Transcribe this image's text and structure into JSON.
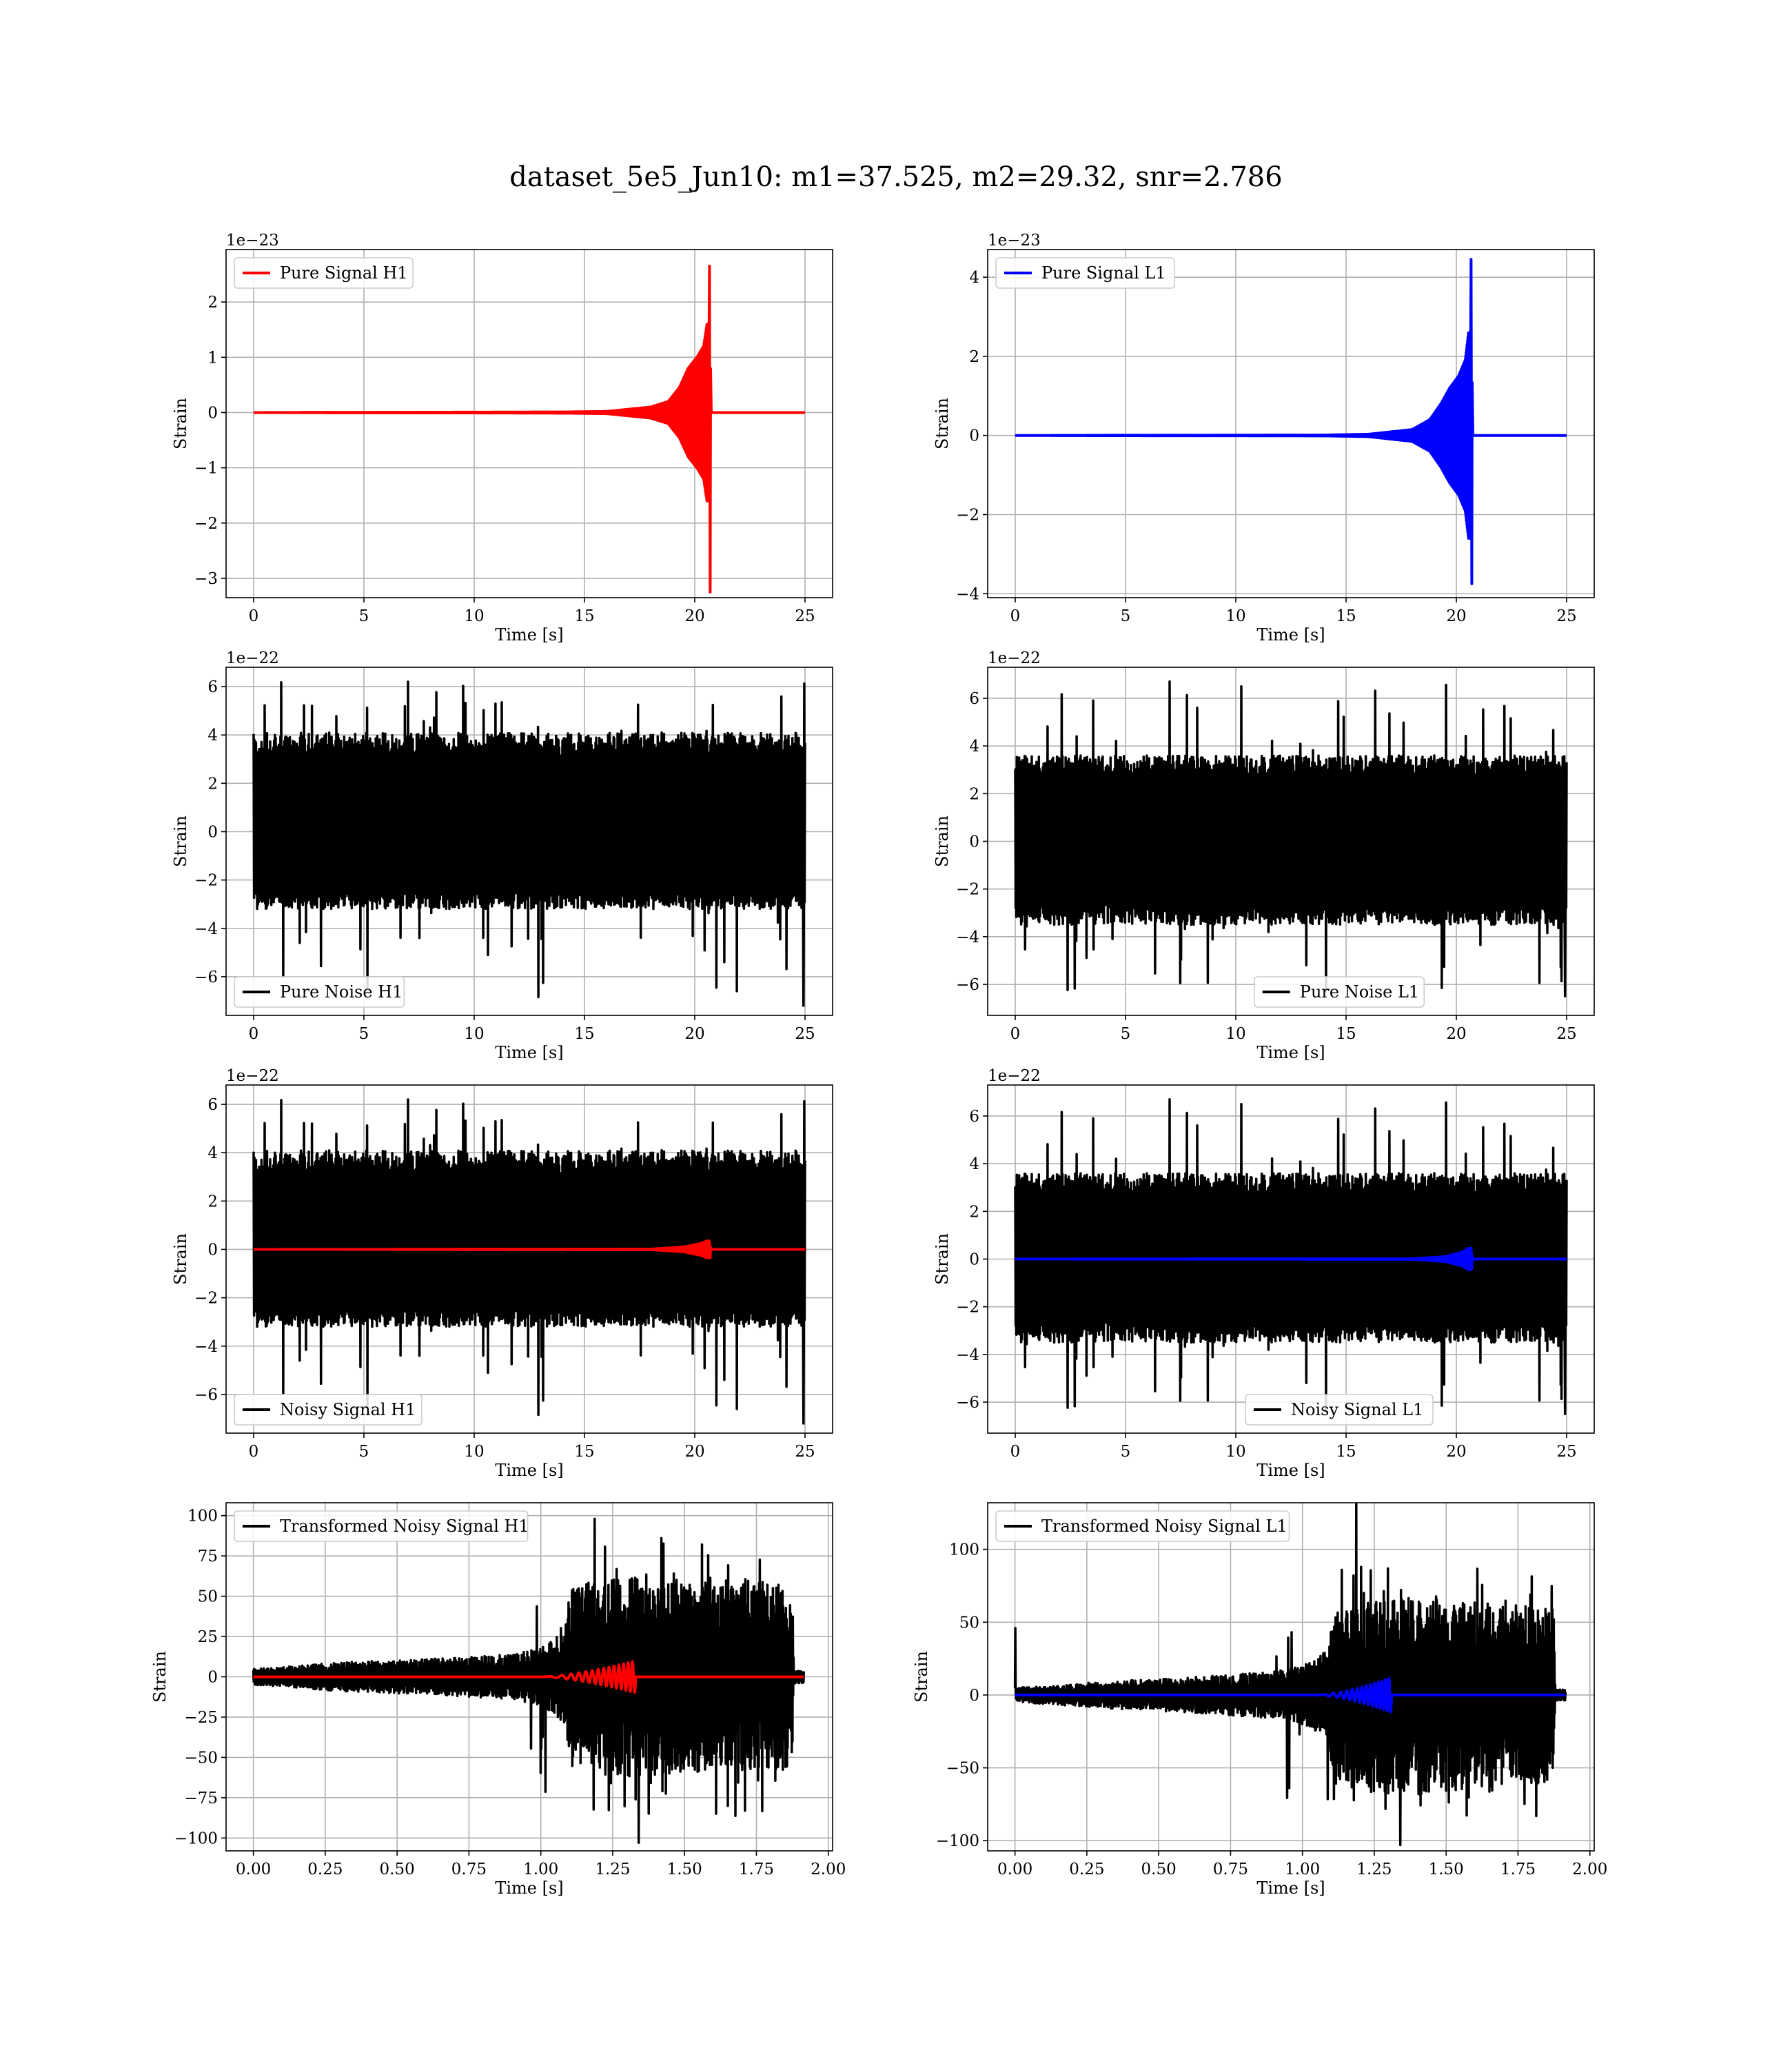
{
  "figure": {
    "title": "dataset_5e5_Jun10: m1=37.525, m2=29.32, snr=2.786"
  },
  "colors": {
    "h1_signal": "#ff0000",
    "l1_signal": "#0000ff",
    "noise": "#000000",
    "grid": "#b0b0b0"
  },
  "chart_data": [
    {
      "id": "pure-signal-h1",
      "type": "line",
      "xlabel": "Time [s]",
      "ylabel": "Strain",
      "offset_text": "1e−23",
      "xlim": [
        -1.25,
        26.25
      ],
      "ylim": [
        -3.35,
        2.95
      ],
      "xticks": [
        0,
        5,
        10,
        15,
        20,
        25
      ],
      "xtick_labels": [
        "0",
        "5",
        "10",
        "15",
        "20",
        "25"
      ],
      "yticks": [
        -3,
        -2,
        -1,
        0,
        1,
        2
      ],
      "ytick_labels": [
        "−3",
        "−2",
        "−1",
        "0",
        "1",
        "2"
      ],
      "legend": {
        "placement": "upper left",
        "entries": [
          {
            "label": "Pure Signal H1",
            "color": "#ff0000"
          }
        ]
      },
      "grid": true,
      "series": [
        {
          "name": "Pure Signal H1",
          "color": "#ff0000",
          "kind": "chirp",
          "x_start": 0,
          "x_end": 25,
          "merger_x": 20.65,
          "ringdown_end_x": 20.75,
          "envelope": [
            [
              0,
              0
            ],
            [
              14,
              0.01
            ],
            [
              16,
              0.02
            ],
            [
              18,
              0.1
            ],
            [
              18.8,
              0.2
            ],
            [
              19.3,
              0.45
            ],
            [
              19.7,
              0.8
            ],
            [
              20.1,
              1.0
            ],
            [
              20.4,
              1.2
            ],
            [
              20.55,
              1.6
            ]
          ],
          "peak_pos": 2.65,
          "peak_neg": -3.25
        }
      ]
    },
    {
      "id": "pure-signal-l1",
      "type": "line",
      "xlabel": "Time [s]",
      "ylabel": "Strain",
      "offset_text": "1e−23",
      "xlim": [
        -1.25,
        26.25
      ],
      "ylim": [
        -4.1,
        4.7
      ],
      "xticks": [
        0,
        5,
        10,
        15,
        20,
        25
      ],
      "xtick_labels": [
        "0",
        "5",
        "10",
        "15",
        "20",
        "25"
      ],
      "yticks": [
        -4,
        -2,
        0,
        2,
        4
      ],
      "ytick_labels": [
        "−4",
        "−2",
        "0",
        "2",
        "4"
      ],
      "legend": {
        "placement": "upper left",
        "entries": [
          {
            "label": "Pure Signal L1",
            "color": "#0000ff"
          }
        ]
      },
      "grid": true,
      "series": [
        {
          "name": "Pure Signal L1",
          "color": "#0000ff",
          "kind": "chirp",
          "x_start": 0,
          "x_end": 25,
          "merger_x": 20.65,
          "ringdown_end_x": 20.75,
          "envelope": [
            [
              0,
              0
            ],
            [
              14,
              0.01
            ],
            [
              16,
              0.03
            ],
            [
              18,
              0.15
            ],
            [
              18.8,
              0.4
            ],
            [
              19.3,
              0.8
            ],
            [
              19.7,
              1.2
            ],
            [
              20.1,
              1.5
            ],
            [
              20.4,
              1.9
            ],
            [
              20.55,
              2.6
            ]
          ],
          "peak_pos": 4.45,
          "peak_neg": -3.75
        }
      ]
    },
    {
      "id": "pure-noise-h1",
      "type": "line",
      "xlabel": "Time [s]",
      "ylabel": "Strain",
      "offset_text": "1e−22",
      "xlim": [
        -1.25,
        26.25
      ],
      "ylim": [
        -7.6,
        6.8
      ],
      "xticks": [
        0,
        5,
        10,
        15,
        20,
        25
      ],
      "xtick_labels": [
        "0",
        "5",
        "10",
        "15",
        "20",
        "25"
      ],
      "yticks": [
        -6,
        -4,
        -2,
        0,
        2,
        4,
        6
      ],
      "ytick_labels": [
        "−6",
        "−4",
        "−2",
        "0",
        "2",
        "4",
        "6"
      ],
      "legend": {
        "placement": "lower left",
        "entries": [
          {
            "label": "Pure Noise H1",
            "color": "#000000"
          }
        ]
      },
      "grid": true,
      "series": [
        {
          "name": "Pure Noise H1",
          "color": "#000000",
          "kind": "noise",
          "x_start": 0,
          "x_end": 25,
          "core": [
            -3.2,
            4.1
          ],
          "max": 6.2,
          "min": -7.2,
          "seed": 11
        }
      ]
    },
    {
      "id": "pure-noise-l1",
      "type": "line",
      "xlabel": "Time [s]",
      "ylabel": "Strain",
      "offset_text": "1e−22",
      "xlim": [
        -1.25,
        26.25
      ],
      "ylim": [
        -7.3,
        7.3
      ],
      "xticks": [
        0,
        5,
        10,
        15,
        20,
        25
      ],
      "xtick_labels": [
        "0",
        "5",
        "10",
        "15",
        "20",
        "25"
      ],
      "yticks": [
        -6,
        -4,
        -2,
        0,
        2,
        4,
        6
      ],
      "ytick_labels": [
        "−6",
        "−4",
        "−2",
        "0",
        "2",
        "4",
        "6"
      ],
      "legend": {
        "placement": "lower center",
        "entries": [
          {
            "label": "Pure Noise L1",
            "color": "#000000"
          }
        ]
      },
      "grid": true,
      "series": [
        {
          "name": "Pure Noise L1",
          "color": "#000000",
          "kind": "noise",
          "x_start": 0,
          "x_end": 25,
          "core": [
            -3.5,
            3.6
          ],
          "max": 6.7,
          "min": -6.5,
          "seed": 23
        }
      ]
    },
    {
      "id": "noisy-signal-h1",
      "type": "line",
      "xlabel": "Time [s]",
      "ylabel": "Strain",
      "offset_text": "1e−22",
      "xlim": [
        -1.25,
        26.25
      ],
      "ylim": [
        -7.6,
        6.8
      ],
      "xticks": [
        0,
        5,
        10,
        15,
        20,
        25
      ],
      "xtick_labels": [
        "0",
        "5",
        "10",
        "15",
        "20",
        "25"
      ],
      "yticks": [
        -6,
        -4,
        -2,
        0,
        2,
        4,
        6
      ],
      "ytick_labels": [
        "−6",
        "−4",
        "−2",
        "0",
        "2",
        "4",
        "6"
      ],
      "legend": {
        "placement": "lower left",
        "entries": [
          {
            "label": "Noisy Signal H1",
            "color": "#000000"
          }
        ]
      },
      "grid": true,
      "series": [
        {
          "name": "Noisy Signal H1",
          "color": "#000000",
          "kind": "noise",
          "x_start": 0,
          "x_end": 25,
          "core": [
            -3.2,
            4.1
          ],
          "max": 6.2,
          "min": -7.2,
          "seed": 11
        },
        {
          "name": "Pure Signal H1",
          "color": "#ff0000",
          "kind": "chirp",
          "x_start": 0,
          "x_end": 25,
          "merger_x": 20.65,
          "ringdown_end_x": 20.75,
          "envelope": [
            [
              0,
              0
            ],
            [
              18,
              0.01
            ],
            [
              19.5,
              0.1
            ],
            [
              20.3,
              0.25
            ],
            [
              20.55,
              0.35
            ]
          ],
          "peak_pos": 0.3,
          "peak_neg": -0.35
        }
      ]
    },
    {
      "id": "noisy-signal-l1",
      "type": "line",
      "xlabel": "Time [s]",
      "ylabel": "Strain",
      "offset_text": "1e−22",
      "xlim": [
        -1.25,
        26.25
      ],
      "ylim": [
        -7.3,
        7.3
      ],
      "xticks": [
        0,
        5,
        10,
        15,
        20,
        25
      ],
      "xtick_labels": [
        "0",
        "5",
        "10",
        "15",
        "20",
        "25"
      ],
      "yticks": [
        -6,
        -4,
        -2,
        0,
        2,
        4,
        6
      ],
      "ytick_labels": [
        "−6",
        "−4",
        "−2",
        "0",
        "2",
        "4",
        "6"
      ],
      "legend": {
        "placement": "lower center",
        "entries": [
          {
            "label": "Noisy Signal L1",
            "color": "#000000"
          }
        ]
      },
      "grid": true,
      "series": [
        {
          "name": "Noisy Signal L1",
          "color": "#000000",
          "kind": "noise",
          "x_start": 0,
          "x_end": 25,
          "core": [
            -3.5,
            3.6
          ],
          "max": 6.7,
          "min": -6.5,
          "seed": 23
        },
        {
          "name": "Pure Signal L1",
          "color": "#0000ff",
          "kind": "chirp",
          "x_start": 0,
          "x_end": 25,
          "merger_x": 20.65,
          "ringdown_end_x": 20.75,
          "envelope": [
            [
              0,
              0
            ],
            [
              18,
              0.01
            ],
            [
              19.5,
              0.1
            ],
            [
              20.3,
              0.3
            ],
            [
              20.55,
              0.45
            ]
          ],
          "peak_pos": 0.45,
          "peak_neg": -0.4
        }
      ]
    },
    {
      "id": "transformed-noisy-signal-h1",
      "type": "line",
      "xlabel": "Time [s]",
      "ylabel": "Strain",
      "offset_text": "",
      "xlim": [
        -0.095,
        2.015
      ],
      "ylim": [
        -108,
        108
      ],
      "xticks": [
        0,
        0.25,
        0.5,
        0.75,
        1.0,
        1.25,
        1.5,
        1.75,
        2.0
      ],
      "xtick_labels": [
        "0.00",
        "0.25",
        "0.50",
        "0.75",
        "1.00",
        "1.25",
        "1.50",
        "1.75",
        "2.00"
      ],
      "yticks": [
        -100,
        -75,
        -50,
        -25,
        0,
        25,
        50,
        75,
        100
      ],
      "ytick_labels": [
        "−100",
        "−75",
        "−50",
        "−25",
        "0",
        "25",
        "50",
        "75",
        "100"
      ],
      "legend": {
        "placement": "upper left",
        "entries": [
          {
            "label": "Transformed Noisy Signal H1",
            "color": "#000000"
          }
        ]
      },
      "grid": true,
      "series": [
        {
          "name": "Transformed Noisy Signal H1",
          "color": "#000000",
          "kind": "burst",
          "x_start": 0,
          "x_end": 1.915,
          "x_drop": 1.875,
          "envelope": [
            [
              0,
              5
            ],
            [
              0.1,
              6
            ],
            [
              0.3,
              9
            ],
            [
              0.6,
              11
            ],
            [
              0.9,
              14
            ],
            [
              1.0,
              18
            ],
            [
              1.08,
              28
            ],
            [
              1.1,
              55
            ],
            [
              1.3,
              62
            ],
            [
              1.5,
              60
            ],
            [
              1.7,
              60
            ],
            [
              1.875,
              58
            ],
            [
              1.88,
              4
            ],
            [
              1.915,
              4
            ]
          ],
          "max": 98,
          "min": -103,
          "seed": 37
        },
        {
          "name": "Signal H1",
          "color": "#ff0000",
          "kind": "chirp-short",
          "x_start": 0,
          "x_end": 1.915,
          "chirp_start": 1.0,
          "chirp_end": 1.33,
          "amp": 10,
          "cycles": 14
        }
      ]
    },
    {
      "id": "transformed-noisy-signal-l1",
      "type": "line",
      "xlabel": "Time [s]",
      "ylabel": "Strain",
      "offset_text": "",
      "xlim": [
        -0.095,
        2.015
      ],
      "ylim": [
        -107,
        132
      ],
      "xticks": [
        0,
        0.25,
        0.5,
        0.75,
        1.0,
        1.25,
        1.5,
        1.75,
        2.0
      ],
      "xtick_labels": [
        "0.00",
        "0.25",
        "0.50",
        "0.75",
        "1.00",
        "1.25",
        "1.50",
        "1.75",
        "2.00"
      ],
      "yticks": [
        -100,
        -50,
        0,
        50,
        100
      ],
      "ytick_labels": [
        "−100",
        "−50",
        "0",
        "50",
        "100"
      ],
      "legend": {
        "placement": "upper left",
        "entries": [
          {
            "label": "Transformed Noisy Signal L1",
            "color": "#000000"
          }
        ]
      },
      "grid": true,
      "series": [
        {
          "name": "Transformed Noisy Signal L1",
          "color": "#000000",
          "kind": "burst",
          "x_start": 0,
          "x_end": 1.915,
          "x_drop": 1.875,
          "envelope": [
            [
              0,
              5
            ],
            [
              0.1,
              6
            ],
            [
              0.3,
              9
            ],
            [
              0.6,
              12
            ],
            [
              0.9,
              16
            ],
            [
              1.0,
              20
            ],
            [
              1.08,
              30
            ],
            [
              1.12,
              62
            ],
            [
              1.3,
              68
            ],
            [
              1.5,
              66
            ],
            [
              1.7,
              62
            ],
            [
              1.875,
              60
            ],
            [
              1.88,
              4
            ],
            [
              1.915,
              4
            ]
          ],
          "max": 131,
          "min": -103,
          "spike_start": 46,
          "seed": 53
        },
        {
          "name": "Signal L1",
          "color": "#0000ff",
          "kind": "chirp-short",
          "x_start": 0,
          "x_end": 1.915,
          "chirp_start": 1.05,
          "chirp_end": 1.31,
          "amp": 12,
          "cycles": 14
        }
      ]
    }
  ]
}
